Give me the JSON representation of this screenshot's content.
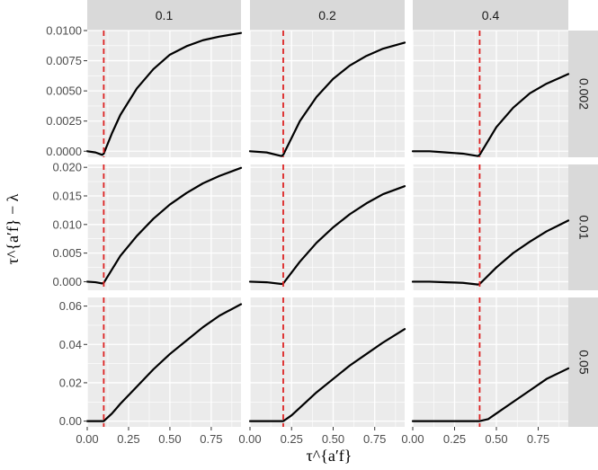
{
  "chart_data": {
    "type": "line",
    "layout": "facet-grid",
    "xlabel": "τ^{a′f}",
    "ylabel": "τ^{a′f} − λ",
    "x_ticks": [
      "0.00",
      "0.25",
      "0.50",
      "0.75"
    ],
    "x_range": [
      0.0,
      0.93
    ],
    "columns": [
      {
        "label": "0.1",
        "value": 0.1
      },
      {
        "label": "0.2",
        "value": 0.2
      },
      {
        "label": "0.4",
        "value": 0.4
      }
    ],
    "rows": [
      {
        "label": "0.002",
        "ylim": [
          -0.0005,
          0.01
        ],
        "y_ticks": [
          "0.0000",
          "0.0025",
          "0.0050",
          "0.0075",
          "0.0100"
        ],
        "panels": [
          {
            "x": [
              0.0,
              0.05,
              0.09,
              0.1,
              0.15,
              0.2,
              0.3,
              0.4,
              0.5,
              0.6,
              0.7,
              0.8,
              0.93
            ],
            "y": [
              0.0,
              -0.0001,
              -0.0003,
              -0.0002,
              0.0015,
              0.003,
              0.0052,
              0.0068,
              0.008,
              0.0087,
              0.0092,
              0.0095,
              0.0098
            ]
          },
          {
            "x": [
              0.0,
              0.1,
              0.19,
              0.2,
              0.3,
              0.4,
              0.5,
              0.6,
              0.7,
              0.8,
              0.93
            ],
            "y": [
              0.0,
              -0.0001,
              -0.0004,
              -0.0003,
              0.0025,
              0.0045,
              0.006,
              0.0071,
              0.0079,
              0.0085,
              0.009
            ]
          },
          {
            "x": [
              0.0,
              0.1,
              0.2,
              0.3,
              0.39,
              0.4,
              0.5,
              0.6,
              0.7,
              0.8,
              0.93
            ],
            "y": [
              0.0,
              0.0,
              -0.0001,
              -0.0002,
              -0.0004,
              -0.0003,
              0.002,
              0.0036,
              0.0048,
              0.0056,
              0.0064
            ]
          }
        ]
      },
      {
        "label": "0.01",
        "ylim": [
          -0.0015,
          0.0205
        ],
        "y_ticks": [
          "0.000",
          "0.005",
          "0.010",
          "0.015",
          "0.020"
        ],
        "panels": [
          {
            "x": [
              0.0,
              0.05,
              0.09,
              0.1,
              0.2,
              0.3,
              0.4,
              0.5,
              0.6,
              0.7,
              0.8,
              0.93
            ],
            "y": [
              0.0,
              -0.0001,
              -0.0003,
              -0.0002,
              0.0045,
              0.008,
              0.011,
              0.0135,
              0.0155,
              0.0172,
              0.0185,
              0.0199
            ]
          },
          {
            "x": [
              0.0,
              0.1,
              0.19,
              0.2,
              0.3,
              0.4,
              0.5,
              0.6,
              0.7,
              0.8,
              0.93
            ],
            "y": [
              0.0,
              -0.0001,
              -0.0004,
              -0.0003,
              0.0035,
              0.0068,
              0.0095,
              0.0118,
              0.0137,
              0.0153,
              0.0167
            ]
          },
          {
            "x": [
              0.0,
              0.1,
              0.2,
              0.3,
              0.39,
              0.4,
              0.5,
              0.6,
              0.7,
              0.8,
              0.93
            ],
            "y": [
              0.0,
              0.0,
              -0.0001,
              -0.0002,
              -0.0005,
              -0.0004,
              0.0025,
              0.005,
              0.007,
              0.0088,
              0.0107
            ]
          }
        ]
      },
      {
        "label": "0.05",
        "ylim": [
          -0.003,
          0.0645
        ],
        "y_ticks": [
          "0.00",
          "0.02",
          "0.04",
          "0.06"
        ],
        "panels": [
          {
            "x": [
              0.0,
              0.05,
              0.1,
              0.15,
              0.2,
              0.3,
              0.4,
              0.5,
              0.6,
              0.7,
              0.8,
              0.93
            ],
            "y": [
              0.0,
              0.0,
              0.0,
              0.004,
              0.009,
              0.018,
              0.027,
              0.035,
              0.042,
              0.049,
              0.055,
              0.061
            ]
          },
          {
            "x": [
              0.0,
              0.1,
              0.2,
              0.25,
              0.3,
              0.4,
              0.5,
              0.6,
              0.7,
              0.8,
              0.93
            ],
            "y": [
              0.0,
              0.0,
              0.0,
              0.003,
              0.007,
              0.015,
              0.022,
              0.029,
              0.035,
              0.041,
              0.048
            ]
          },
          {
            "x": [
              0.0,
              0.1,
              0.2,
              0.3,
              0.4,
              0.45,
              0.5,
              0.6,
              0.7,
              0.8,
              0.93
            ],
            "y": [
              0.0,
              0.0,
              0.0,
              0.0,
              0.0,
              0.001,
              0.004,
              0.01,
              0.016,
              0.022,
              0.0275
            ]
          }
        ]
      }
    ],
    "vline": {
      "style": "dashed",
      "color": "#dd2222",
      "at": "column value"
    },
    "colors": {
      "panel_bg": "#ebebeb",
      "grid": "#ffffff",
      "strip_bg": "#d9d9d9",
      "line": "#000000"
    }
  }
}
